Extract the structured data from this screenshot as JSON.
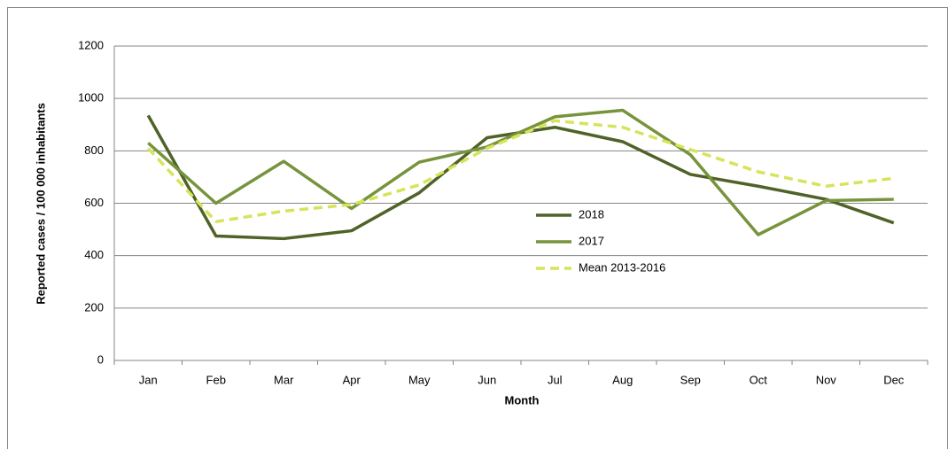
{
  "chart_data": {
    "type": "line",
    "y_label": "Reported cases / 100 000 inhabitants",
    "x_label": "Month",
    "categories": [
      "Jan",
      "Feb",
      "Mar",
      "Apr",
      "May",
      "Jun",
      "Jul",
      "Aug",
      "Sep",
      "Oct",
      "Nov",
      "Dec"
    ],
    "series": [
      {
        "name": "2018",
        "color": "#4f6228",
        "dashed": false,
        "values": [
          935,
          475,
          465,
          495,
          640,
          850,
          890,
          835,
          710,
          665,
          615,
          525
        ]
      },
      {
        "name": "2017",
        "color": "#77933c",
        "dashed": false,
        "values": [
          830,
          600,
          760,
          580,
          757,
          815,
          930,
          955,
          785,
          480,
          610,
          615
        ]
      },
      {
        "name": "Mean 2013-2016",
        "color": "#d7e45a",
        "dashed": true,
        "values": [
          810,
          530,
          570,
          595,
          670,
          810,
          915,
          890,
          805,
          720,
          665,
          695
        ]
      }
    ],
    "ylim": [
      0,
      1200
    ],
    "yticks": [
      0,
      200,
      400,
      600,
      800,
      1000,
      1200
    ],
    "grid": true,
    "legend_position": "center"
  }
}
